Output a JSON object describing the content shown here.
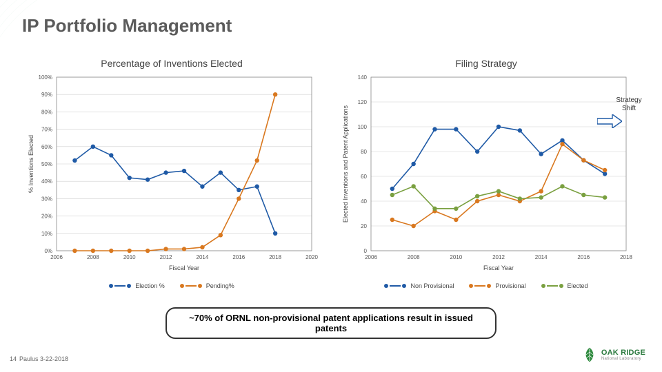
{
  "page_title": "IP Portfolio Management",
  "page_number": "14",
  "footer_text": "Paulus 3-22-2018",
  "callout_text": "~70% of ORNL non-provisional patent applications result in issued patents",
  "annotation": "Strategy Shift",
  "logo": {
    "name": "OAK RIDGE",
    "sub": "National Laboratory"
  },
  "left_chart": {
    "type": "line",
    "title": "Percentage of Inventions Elected",
    "xlabel": "Fiscal Year",
    "ylabel": "% Inventions Elected",
    "xlim": [
      2006,
      2020
    ],
    "xticks": [
      2006,
      2008,
      2010,
      2012,
      2014,
      2016,
      2018,
      2020
    ],
    "ylim": [
      0,
      100
    ],
    "yticks": [
      0,
      10,
      20,
      30,
      40,
      50,
      60,
      70,
      80,
      90,
      100
    ],
    "ytick_labels": [
      "0%",
      "10%",
      "20%",
      "30%",
      "40%",
      "50%",
      "60%",
      "70%",
      "80%",
      "90%",
      "100%"
    ],
    "grid_color": "#cfcfcf",
    "series": [
      {
        "name": "Election %",
        "color": "#1f5aa6",
        "marker": "circle",
        "x": [
          2007,
          2008,
          2009,
          2010,
          2011,
          2012,
          2013,
          2014,
          2015,
          2016,
          2017,
          2018
        ],
        "y": [
          52,
          60,
          55,
          42,
          41,
          45,
          46,
          37,
          45,
          35,
          37,
          10
        ]
      },
      {
        "name": "Pending%",
        "color": "#d9781f",
        "marker": "circle",
        "x": [
          2007,
          2008,
          2009,
          2010,
          2011,
          2012,
          2013,
          2014,
          2015,
          2016,
          2017,
          2018
        ],
        "y": [
          0,
          0,
          0,
          0,
          0,
          1,
          1,
          2,
          9,
          30,
          52,
          90
        ]
      }
    ],
    "legend_labels": [
      "Election %",
      "Pending%"
    ]
  },
  "right_chart": {
    "type": "line",
    "title": "Filing Strategy",
    "xlabel": "Fiscal Year",
    "ylabel": "Elected Inventions and Patent Applications",
    "xlim": [
      2006,
      2018
    ],
    "xticks": [
      2006,
      2008,
      2010,
      2012,
      2014,
      2016,
      2018
    ],
    "ylim": [
      0,
      140
    ],
    "yticks": [
      0,
      20,
      40,
      60,
      80,
      100,
      120,
      140
    ],
    "grid_color": "#cfcfcf",
    "series": [
      {
        "name": "Non Provisional",
        "color": "#1f5aa6",
        "marker": "circle",
        "x": [
          2007,
          2008,
          2009,
          2010,
          2011,
          2012,
          2013,
          2014,
          2015,
          2016,
          2017
        ],
        "y": [
          50,
          70,
          98,
          98,
          80,
          100,
          97,
          78,
          89,
          73,
          62
        ]
      },
      {
        "name": "Provisional",
        "color": "#d9781f",
        "marker": "circle",
        "x": [
          2007,
          2008,
          2009,
          2010,
          2011,
          2012,
          2013,
          2014,
          2015,
          2016,
          2017
        ],
        "y": [
          25,
          20,
          32,
          25,
          40,
          45,
          40,
          48,
          86,
          73,
          65
        ]
      },
      {
        "name": "Elected",
        "color": "#7aa040",
        "marker": "circle",
        "x": [
          2007,
          2008,
          2009,
          2010,
          2011,
          2012,
          2013,
          2014,
          2015,
          2016,
          2017
        ],
        "y": [
          45,
          52,
          34,
          34,
          44,
          48,
          42,
          43,
          52,
          45,
          43
        ]
      }
    ],
    "legend_labels": [
      "Non Provisional",
      "Provisional",
      "Elected"
    ]
  }
}
